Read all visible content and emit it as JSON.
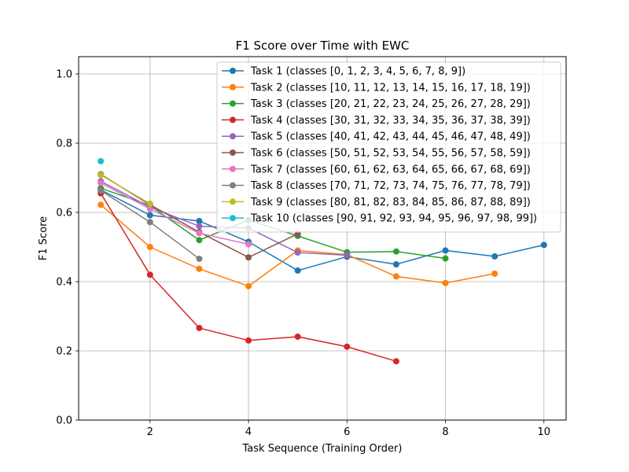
{
  "chart_data": {
    "type": "line",
    "title": "F1 Score over Time with EWC",
    "xlabel": "Task Sequence (Training Order)",
    "ylabel": "F1 Score",
    "xlim": [
      0.55,
      10.45
    ],
    "ylim": [
      0.0,
      1.05
    ],
    "xticks": [
      2,
      4,
      6,
      8,
      10
    ],
    "yticks": [
      0.0,
      0.2,
      0.4,
      0.6,
      0.8,
      1.0
    ],
    "grid": true,
    "legend_position": "top-right",
    "series": [
      {
        "name": "Task 1 (classes [0, 1, 2, 3, 4, 5, 6, 7, 8, 9])",
        "color": "#1f77b4",
        "x": [
          1,
          2,
          3,
          4,
          5,
          6,
          7,
          8,
          9,
          10
        ],
        "y": [
          0.665,
          0.592,
          0.575,
          0.515,
          0.432,
          0.472,
          0.45,
          0.49,
          0.473,
          0.506
        ]
      },
      {
        "name": "Task 2 (classes [10, 11, 12, 13, 14, 15, 16, 17, 18, 19])",
        "color": "#ff7f0e",
        "x": [
          1,
          2,
          3,
          4,
          5,
          6,
          7,
          8,
          9
        ],
        "y": [
          0.622,
          0.5,
          0.437,
          0.387,
          0.49,
          0.478,
          0.415,
          0.396,
          0.423
        ]
      },
      {
        "name": "Task 3 (classes [20, 21, 22, 23, 24, 25, 26, 27, 28, 29])",
        "color": "#2ca02c",
        "x": [
          1,
          2,
          3,
          4,
          5,
          6,
          7,
          8
        ],
        "y": [
          0.67,
          0.62,
          0.52,
          0.578,
          0.532,
          0.485,
          0.487,
          0.467
        ]
      },
      {
        "name": "Task 4 (classes [30, 31, 32, 33, 34, 35, 36, 37, 38, 39])",
        "color": "#d62728",
        "x": [
          1,
          2,
          3,
          4,
          5,
          6,
          7
        ],
        "y": [
          0.655,
          0.42,
          0.266,
          0.23,
          0.241,
          0.212,
          0.17
        ]
      },
      {
        "name": "Task 5 (classes [40, 41, 42, 43, 44, 45, 46, 47, 48, 49])",
        "color": "#9467bd",
        "x": [
          1,
          2,
          3,
          4,
          5,
          6
        ],
        "y": [
          0.69,
          0.615,
          0.56,
          0.555,
          0.484,
          0.476
        ]
      },
      {
        "name": "Task 6 (classes [50, 51, 52, 53, 54, 55, 56, 57, 58, 59])",
        "color": "#8c564b",
        "x": [
          1,
          2,
          3,
          4,
          5
        ],
        "y": [
          0.71,
          0.622,
          0.543,
          0.47,
          0.538
        ]
      },
      {
        "name": "Task 7 (classes [60, 61, 62, 63, 64, 65, 66, 67, 68, 69])",
        "color": "#e377c2",
        "x": [
          1,
          2,
          3,
          4
        ],
        "y": [
          0.685,
          0.61,
          0.54,
          0.508
        ]
      },
      {
        "name": "Task 8 (classes [70, 71, 72, 73, 74, 75, 76, 77, 78, 79])",
        "color": "#7f7f7f",
        "x": [
          1,
          2,
          3
        ],
        "y": [
          0.663,
          0.572,
          0.466
        ]
      },
      {
        "name": "Task 9 (classes [80, 81, 82, 83, 84, 85, 86, 87, 88, 89])",
        "color": "#bcbd22",
        "x": [
          1,
          2
        ],
        "y": [
          0.708,
          0.625
        ]
      },
      {
        "name": "Task 10 (classes [90, 91, 92, 93, 94, 95, 96, 97, 98, 99])",
        "color": "#17becf",
        "x": [
          1
        ],
        "y": [
          0.748
        ]
      }
    ]
  }
}
